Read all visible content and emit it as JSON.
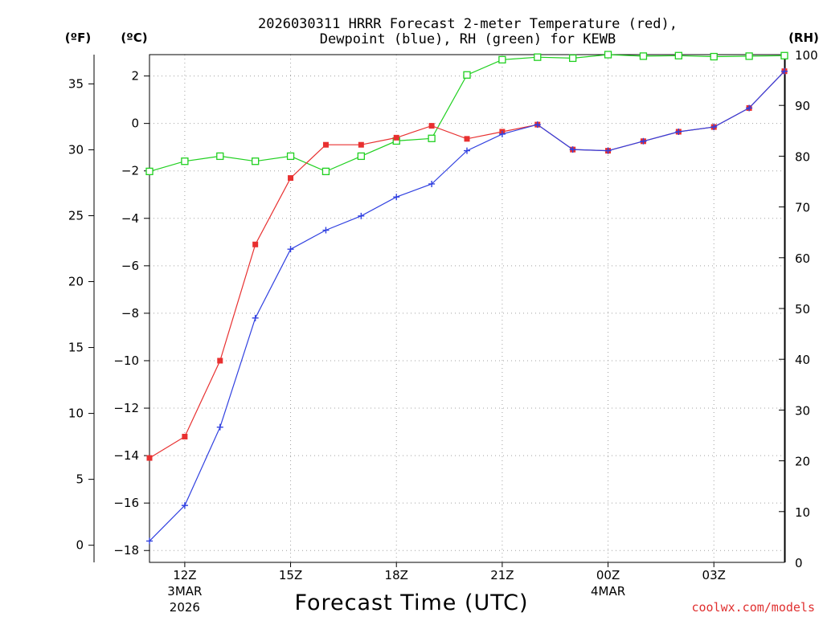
{
  "chart_data": {
    "type": "line",
    "title_line1": "2026030311 HRRR Forecast 2-meter Temperature (red),",
    "title_line2": "Dewpoint (blue), RH (green) for KEWB",
    "xlabel": "Forecast Time (UTC)",
    "credit": "coolwx.com/models",
    "units": {
      "fahrenheit": "(ºF)",
      "celsius": "(ºC)",
      "rh": "(RH)"
    },
    "x": [
      11,
      12,
      13,
      14,
      15,
      16,
      17,
      18,
      19,
      20,
      21,
      22,
      23,
      24,
      25,
      26,
      27,
      28,
      29
    ],
    "xlim": [
      11,
      29
    ],
    "ylim_celsius": [
      -18.5,
      2.9
    ],
    "ylim_rh": [
      0,
      100
    ],
    "x_ticks": [
      {
        "x": 12,
        "label": "12Z",
        "sub1": "3MAR",
        "sub2": "2026"
      },
      {
        "x": 15,
        "label": "15Z",
        "sub1": "",
        "sub2": ""
      },
      {
        "x": 18,
        "label": "18Z",
        "sub1": "",
        "sub2": ""
      },
      {
        "x": 21,
        "label": "21Z",
        "sub1": "",
        "sub2": ""
      },
      {
        "x": 24,
        "label": "00Z",
        "sub1": "4MAR",
        "sub2": ""
      },
      {
        "x": 27,
        "label": "03Z",
        "sub1": "",
        "sub2": ""
      }
    ],
    "celsius_ticks": [
      "-18",
      "-16",
      "-14",
      "-12",
      "-10",
      "-8",
      "-6",
      "-4",
      "-2",
      "0",
      "2"
    ],
    "fahrenheit_ticks": [
      "0",
      "5",
      "10",
      "15",
      "20",
      "25",
      "30",
      "35"
    ],
    "rh_ticks": [
      "0",
      "10",
      "20",
      "30",
      "40",
      "50",
      "60",
      "70",
      "80",
      "90",
      "100"
    ],
    "series": [
      {
        "name": "Temperature",
        "unit": "C",
        "color": "#e83030",
        "marker": "filled-square",
        "values": [
          -14.1,
          -13.2,
          -10.0,
          -5.1,
          -2.3,
          -0.9,
          -0.9,
          -0.6,
          -0.1,
          -0.65,
          -0.35,
          -0.05,
          -1.1,
          -1.15,
          -0.75,
          -0.35,
          -0.15,
          0.65,
          2.2
        ]
      },
      {
        "name": "Dewpoint",
        "unit": "C",
        "color": "#3040e0",
        "marker": "plus",
        "values": [
          -17.6,
          -16.1,
          -12.8,
          -8.2,
          -5.3,
          -4.5,
          -3.9,
          -3.1,
          -2.55,
          -1.15,
          -0.45,
          -0.05,
          -1.1,
          -1.15,
          -0.75,
          -0.35,
          -0.15,
          0.65,
          2.2
        ]
      },
      {
        "name": "RH",
        "unit": "%",
        "color": "#20d020",
        "marker": "open-square",
        "values": [
          77,
          79,
          80,
          79,
          80,
          77,
          80,
          83,
          83.5,
          96,
          99,
          99.5,
          99.3,
          100,
          99.7,
          99.8,
          99.6,
          99.7,
          99.8
        ]
      }
    ]
  }
}
